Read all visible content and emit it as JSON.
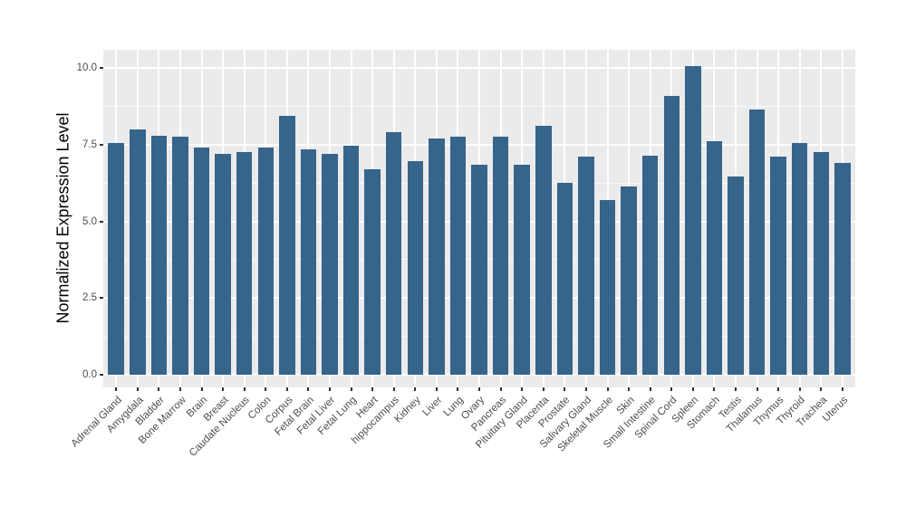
{
  "chart_data": {
    "type": "bar",
    "title": "",
    "xlabel": "",
    "ylabel": "Normalized Expression Level",
    "categories": [
      "Adrenal Gland",
      "Amygdala",
      "Bladder",
      "Bone Marrow",
      "Brain",
      "Breast",
      "Caudate Nucleus",
      "Colon",
      "Corpus",
      "Fetal Brain",
      "Fetal Liver",
      "Fetal Lung",
      "Heart",
      "hippocampus",
      "Kidney",
      "Liver",
      "Lung",
      "Ovary",
      "Pancreas",
      "Pituitary Gland",
      "Placenta",
      "Prostate",
      "Salivary Gland",
      "Skeletal Muscle",
      "Skin",
      "Small Intestine",
      "Spinal Cord",
      "Spleen",
      "Stomach",
      "Testis",
      "Thalamus",
      "Thymus",
      "Thyroid",
      "Trachea",
      "Uterus"
    ],
    "values": [
      7.55,
      8.0,
      7.8,
      7.75,
      7.4,
      7.2,
      7.25,
      7.4,
      8.45,
      7.35,
      7.2,
      7.45,
      6.7,
      7.9,
      6.95,
      7.7,
      7.75,
      6.85,
      7.75,
      6.85,
      8.1,
      6.25,
      7.1,
      5.7,
      6.15,
      7.15,
      9.1,
      10.05,
      7.6,
      6.45,
      8.65,
      7.1,
      7.55,
      7.25,
      6.9
    ],
    "yticks": [
      0.0,
      2.5,
      5.0,
      7.5,
      10.0
    ],
    "ytick_labels": [
      "0.0",
      "2.5",
      "5.0",
      "7.5",
      "10.0"
    ],
    "ylim": [
      -0.4,
      10.6
    ],
    "grid": "on",
    "legend_position": "none",
    "colors": {
      "bar": "#36648B",
      "panel_bg": "#EBEBEB",
      "grid_major": "#FFFFFF",
      "grid_minor": "#FFFFFF",
      "axis_text": "#4D4D4D",
      "axis_title": "#000000",
      "tick_mark": "#333333",
      "figure_bg": "#FFFFFF"
    }
  }
}
